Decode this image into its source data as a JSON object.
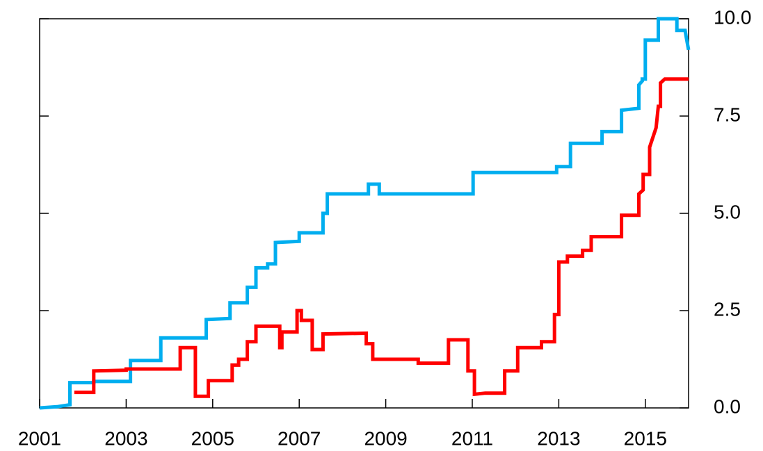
{
  "chart_data": {
    "type": "line",
    "xlim": [
      2001,
      2016
    ],
    "xticks": [
      2001,
      2003,
      2005,
      2007,
      2009,
      2011,
      2013,
      2015
    ],
    "ylim": [
      0,
      10
    ],
    "yticks": [
      {
        "value": 0,
        "label": "0.0"
      },
      2.5,
      {
        "value": 5,
        "label": "5.0"
      },
      7.5,
      {
        "value": 10,
        "label": "10.0"
      }
    ],
    "series": [
      {
        "color": "#00aeef",
        "x": [
          2001,
          2001.4,
          2001.7,
          2001.7,
          2002.25,
          2002.25,
          2003.1,
          2003.1,
          2003.8,
          2003.8,
          2004.85,
          2004.85,
          2005.4,
          2005.4,
          2005.8,
          2005.8,
          2006.0,
          2006.0,
          2006.27,
          2006.27,
          2006.45,
          2006.45,
          2007.0,
          2007.0,
          2007.55,
          2007.55,
          2007.65,
          2007.65,
          2008.6,
          2008.6,
          2008.85,
          2008.85,
          2011.02,
          2011.02,
          2012.95,
          2012.95,
          2013.27,
          2013.27,
          2014.0,
          2014.0,
          2014.45,
          2014.45,
          2014.85,
          2014.85,
          2014.93,
          2014.93,
          2015.0,
          2015.0,
          2015.3,
          2015.3,
          2015.73,
          2015.73,
          2015.92,
          2015.95,
          2016.0
        ],
        "values": [
          0,
          0.03,
          0.08,
          0.65,
          0.65,
          0.68,
          0.68,
          1.22,
          1.22,
          1.8,
          1.8,
          2.27,
          2.3,
          2.7,
          2.7,
          3.1,
          3.1,
          3.6,
          3.6,
          3.7,
          3.7,
          4.25,
          4.28,
          4.5,
          4.5,
          5.0,
          5.0,
          5.5,
          5.5,
          5.75,
          5.75,
          5.5,
          5.5,
          6.05,
          6.05,
          6.2,
          6.2,
          6.8,
          6.8,
          7.1,
          7.1,
          7.65,
          7.7,
          8.3,
          8.4,
          8.45,
          8.45,
          9.45,
          9.45,
          10.0,
          10.0,
          9.7,
          9.7,
          9.5,
          9.2
        ]
      },
      {
        "color": "#ff0000",
        "x": [
          2001.8,
          2002.25,
          2002.25,
          2003.0,
          2003.0,
          2004.25,
          2004.25,
          2004.6,
          2004.6,
          2004.9,
          2004.9,
          2005.45,
          2005.45,
          2005.6,
          2005.6,
          2005.8,
          2005.8,
          2006.0,
          2006.0,
          2006.55,
          2006.55,
          2006.6,
          2006.6,
          2006.95,
          2006.95,
          2007.05,
          2007.05,
          2007.3,
          2007.3,
          2007.55,
          2007.55,
          2008.55,
          2008.55,
          2008.7,
          2008.7,
          2009.75,
          2009.75,
          2010.45,
          2010.45,
          2010.9,
          2010.9,
          2011.05,
          2011.05,
          2011.3,
          2011.75,
          2011.75,
          2012.05,
          2012.05,
          2012.6,
          2012.6,
          2012.9,
          2012.9,
          2013.0,
          2013.0,
          2013.2,
          2013.2,
          2013.55,
          2013.55,
          2013.75,
          2013.75,
          2014.45,
          2014.45,
          2014.85,
          2014.85,
          2014.95,
          2014.95,
          2015.1,
          2015.1,
          2015.25,
          2015.3,
          2015.35,
          2015.35,
          2015.45,
          2016.0
        ],
        "values": [
          0.4,
          0.4,
          0.95,
          0.97,
          1.0,
          1.0,
          1.55,
          1.55,
          0.3,
          0.3,
          0.7,
          0.7,
          1.1,
          1.1,
          1.25,
          1.25,
          1.7,
          1.7,
          2.1,
          2.1,
          1.55,
          1.55,
          1.95,
          1.95,
          2.5,
          2.5,
          2.25,
          2.25,
          1.5,
          1.5,
          1.9,
          1.92,
          1.65,
          1.65,
          1.25,
          1.25,
          1.15,
          1.15,
          1.75,
          1.75,
          0.95,
          0.95,
          0.35,
          0.38,
          0.38,
          0.95,
          0.95,
          1.55,
          1.55,
          1.7,
          1.7,
          2.4,
          2.4,
          3.75,
          3.75,
          3.9,
          3.9,
          4.05,
          4.05,
          4.4,
          4.4,
          4.95,
          4.95,
          5.5,
          5.6,
          6.0,
          6.0,
          6.7,
          7.2,
          7.75,
          7.75,
          8.35,
          8.45,
          8.45
        ]
      }
    ]
  }
}
